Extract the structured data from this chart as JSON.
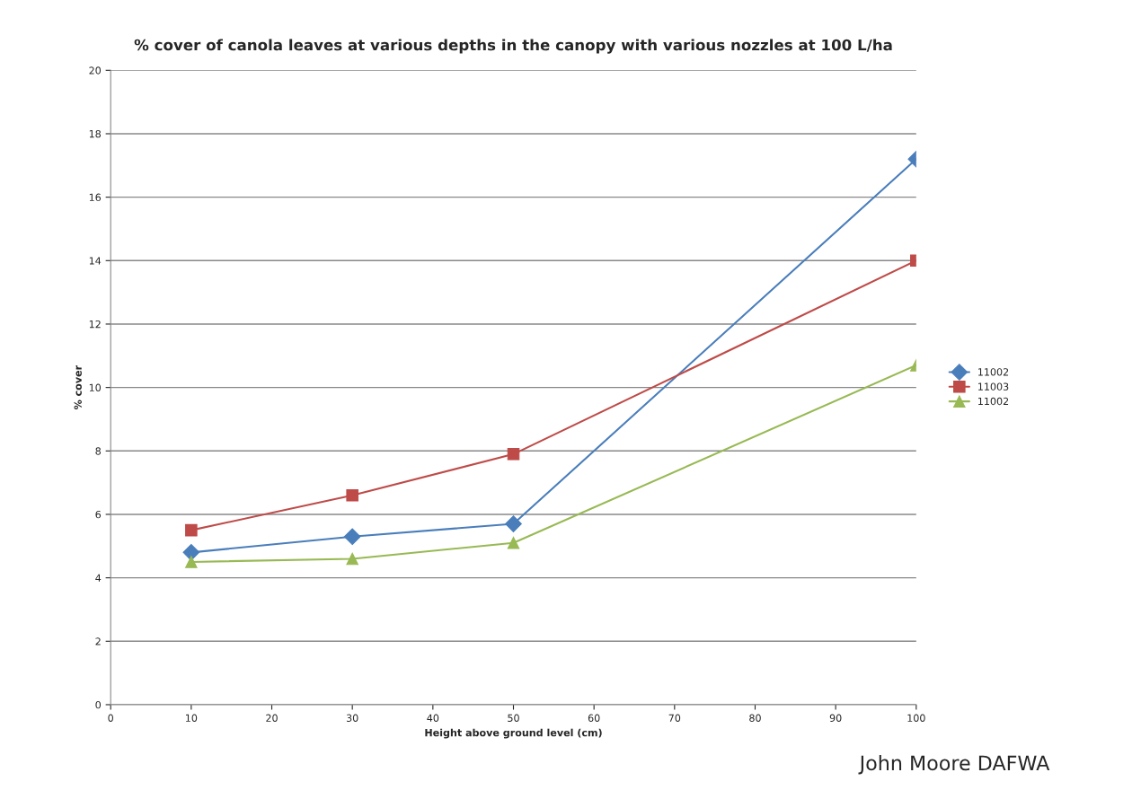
{
  "chart_data": {
    "type": "line",
    "title": "% cover of canola leaves at various depths in the canopy with various nozzles at 100 L/ha",
    "xlabel": "Height above ground level (cm)",
    "ylabel": "% cover",
    "x": [
      10,
      30,
      50,
      100
    ],
    "series": [
      {
        "name": "11002",
        "color": "#4a7ebb",
        "marker": "diamond",
        "values": [
          4.8,
          5.3,
          5.7,
          17.2
        ]
      },
      {
        "name": "11003",
        "color": "#be4b48",
        "marker": "square",
        "values": [
          5.5,
          6.6,
          7.9,
          14.0
        ]
      },
      {
        "name": "11002",
        "color": "#98b954",
        "marker": "triangle",
        "values": [
          4.5,
          4.6,
          5.1,
          10.7
        ]
      }
    ],
    "xlim": [
      0,
      100
    ],
    "xticks": [
      0,
      10,
      20,
      30,
      40,
      50,
      60,
      70,
      80,
      90,
      100
    ],
    "ylim": [
      0,
      20
    ],
    "yticks": [
      0,
      2,
      4,
      6,
      8,
      10,
      12,
      14,
      16,
      18,
      20
    ],
    "grid": "y",
    "legend": "right",
    "annotations": [
      "John Moore DAFWA"
    ]
  }
}
